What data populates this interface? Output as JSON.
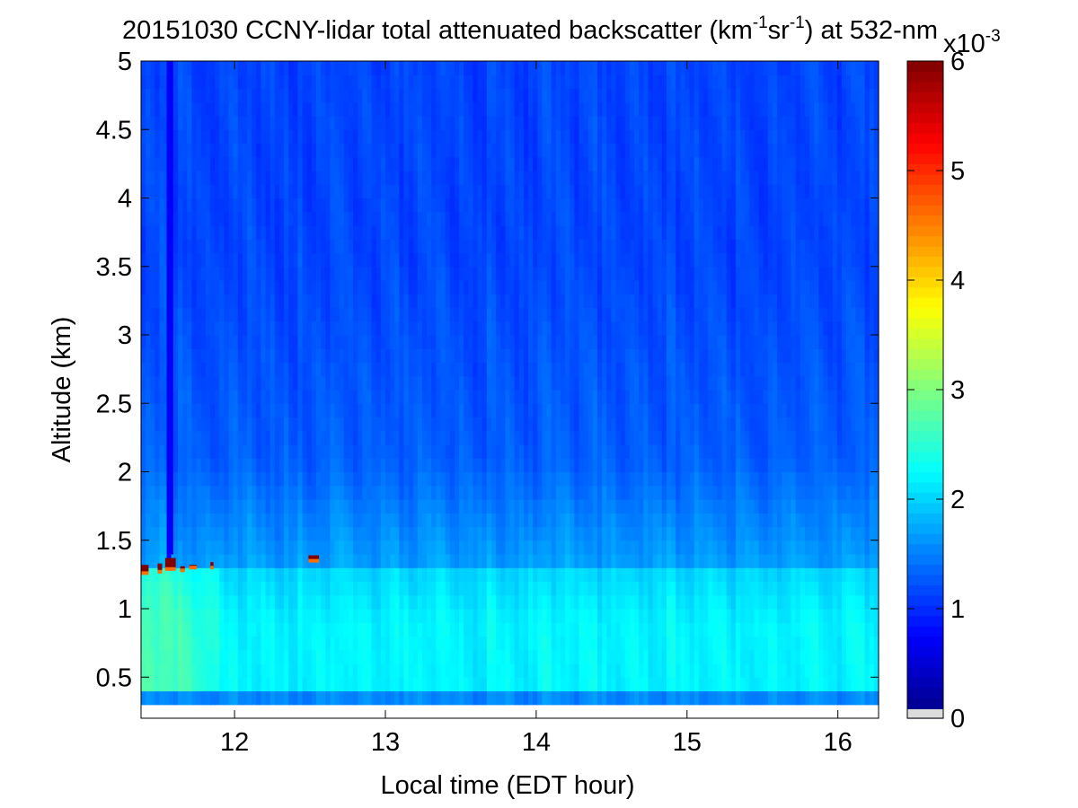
{
  "chart_data": {
    "type": "heatmap",
    "title": {
      "date": "20151030",
      "main": "CCNY-lidar total attenuated backscatter (km",
      "exp1": "-1",
      "mid": "sr",
      "exp2": "-1",
      "tail": ") at 532-nm"
    },
    "xlabel": "Local time (EDT hour)",
    "ylabel": "Altitude (km)",
    "xlim": [
      11.38,
      16.27
    ],
    "ylim": [
      0.2,
      5.0
    ],
    "data_ylim": [
      0.3,
      5.0
    ],
    "x_ticks": [
      12,
      13,
      14,
      15,
      16
    ],
    "y_ticks": [
      0.5,
      1,
      1.5,
      2,
      2.5,
      3,
      3.5,
      4,
      4.5,
      5
    ],
    "colorbar": {
      "colormap": "jet",
      "range": [
        0,
        6
      ],
      "ticks": [
        0,
        1,
        2,
        3,
        4,
        5,
        6
      ],
      "exponent_base": "x10",
      "exponent": "-3",
      "units": "km^-1 sr^-1 (x10^-3)"
    },
    "description_values": {
      "background_free_troposphere": 1.15,
      "boundary_layer_upper": 1.7,
      "boundary_layer_core": 2.2,
      "boundary_layer_top_km": 1.3,
      "cloud_value": 6.0
    },
    "clouds": [
      {
        "t0": 11.38,
        "t1": 11.43,
        "z0": 1.26,
        "z1": 1.32
      },
      {
        "t0": 11.49,
        "t1": 11.52,
        "z0": 1.27,
        "z1": 1.33
      },
      {
        "t0": 11.54,
        "t1": 11.61,
        "z0": 1.29,
        "z1": 1.37
      },
      {
        "t0": 11.64,
        "t1": 11.67,
        "z0": 1.28,
        "z1": 1.31
      },
      {
        "t0": 11.7,
        "t1": 11.75,
        "z0": 1.3,
        "z1": 1.32
      },
      {
        "t0": 11.84,
        "t1": 11.86,
        "z0": 1.3,
        "z1": 1.34
      },
      {
        "t0": 12.49,
        "t1": 12.56,
        "z0": 1.35,
        "z1": 1.39
      }
    ],
    "low_signal_column": {
      "t0": 11.55,
      "t1": 11.58,
      "z0": 1.37,
      "z1": 5.0
    }
  }
}
